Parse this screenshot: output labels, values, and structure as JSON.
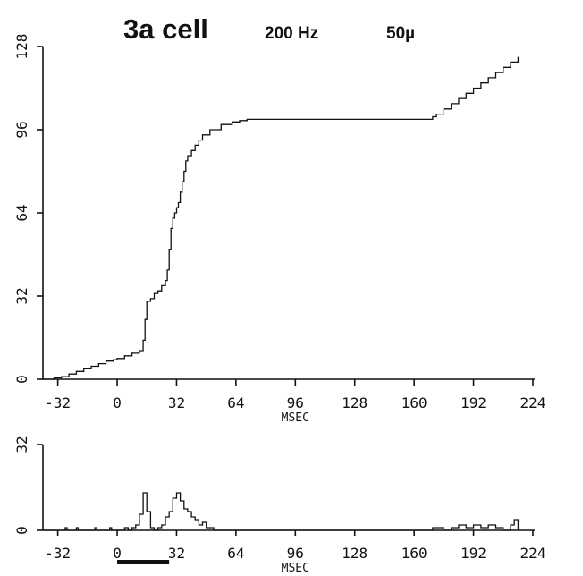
{
  "title": {
    "main": "3a cell",
    "freq": "200 Hz",
    "size": "50µ"
  },
  "chart_data": [
    {
      "type": "line",
      "title": "",
      "xlabel": "MSEC",
      "ylabel": "",
      "xlim": [
        -40,
        224
      ],
      "ylim": [
        0,
        128
      ],
      "x_ticks": [
        -32,
        0,
        32,
        64,
        96,
        128,
        160,
        192,
        224
      ],
      "y_ticks": [
        0,
        32,
        64,
        96,
        128
      ],
      "x_tick_labels": [
        "-32",
        "0",
        "32",
        "64",
        "96",
        "128",
        "160",
        "192",
        "224"
      ],
      "y_tick_labels": [
        "0",
        "32",
        "64",
        "96",
        "128"
      ],
      "series": [
        {
          "x": [
            -40,
            -34,
            -30,
            -26,
            -22,
            -18,
            -14,
            -10,
            -6,
            -2,
            0,
            4,
            8,
            12,
            14,
            15,
            16,
            18,
            20,
            22,
            24,
            26,
            27,
            28,
            29,
            30,
            31,
            32,
            33,
            34,
            35,
            36,
            37,
            38,
            40,
            42,
            44,
            46,
            50,
            56,
            62,
            66,
            70,
            100,
            130,
            160,
            170,
            172,
            176,
            180,
            184,
            188,
            192,
            196,
            200,
            204,
            208,
            212,
            216
          ],
          "y": [
            0,
            0.5,
            1,
            2,
            3,
            4,
            5,
            6,
            7,
            7.5,
            8,
            9,
            10,
            11,
            15,
            23,
            30,
            31,
            33,
            34,
            36,
            38,
            42,
            50,
            58,
            62,
            64,
            66,
            68,
            72,
            76,
            80,
            84,
            86,
            88,
            90,
            92,
            94,
            96,
            98,
            99,
            99.5,
            100,
            100,
            100,
            100,
            101,
            102,
            104,
            106,
            108,
            110,
            112,
            114,
            116,
            118,
            120,
            122,
            124
          ]
        }
      ]
    },
    {
      "type": "line",
      "title": "",
      "xlabel": "MSEC",
      "ylabel": "",
      "xlim": [
        -40,
        224
      ],
      "ylim": [
        0,
        32
      ],
      "x_ticks": [
        -32,
        0,
        32,
        64,
        96,
        128,
        160,
        192,
        224
      ],
      "y_ticks": [
        0,
        32
      ],
      "x_tick_labels": [
        "-32",
        "0",
        "32",
        "64",
        "96",
        "128",
        "160",
        "192",
        "224"
      ],
      "y_tick_labels": [
        "0",
        "32"
      ],
      "stimulus_bar": [
        0,
        28
      ],
      "series": [
        {
          "x": [
            -40,
            -28,
            -27,
            -22,
            -21,
            -12,
            -11,
            -4,
            -3,
            0,
            4,
            6,
            8,
            10,
            12,
            14,
            16,
            18,
            20,
            22,
            24,
            26,
            28,
            30,
            32,
            34,
            36,
            38,
            40,
            42,
            44,
            46,
            48,
            52,
            60,
            100,
            160,
            170,
            176,
            180,
            184,
            188,
            192,
            196,
            200,
            204,
            208,
            212,
            214,
            216
          ],
          "y": [
            0,
            1,
            0,
            1,
            0,
            1,
            0,
            1,
            0,
            0,
            1,
            0,
            1,
            2,
            6,
            14,
            7,
            1,
            0,
            1,
            2,
            5,
            7,
            12,
            14,
            11,
            8,
            7,
            5,
            4,
            2,
            3,
            1,
            0,
            0,
            0,
            0,
            1,
            0,
            1,
            2,
            1,
            2,
            1,
            2,
            1,
            0,
            2,
            4,
            0
          ]
        }
      ]
    }
  ]
}
